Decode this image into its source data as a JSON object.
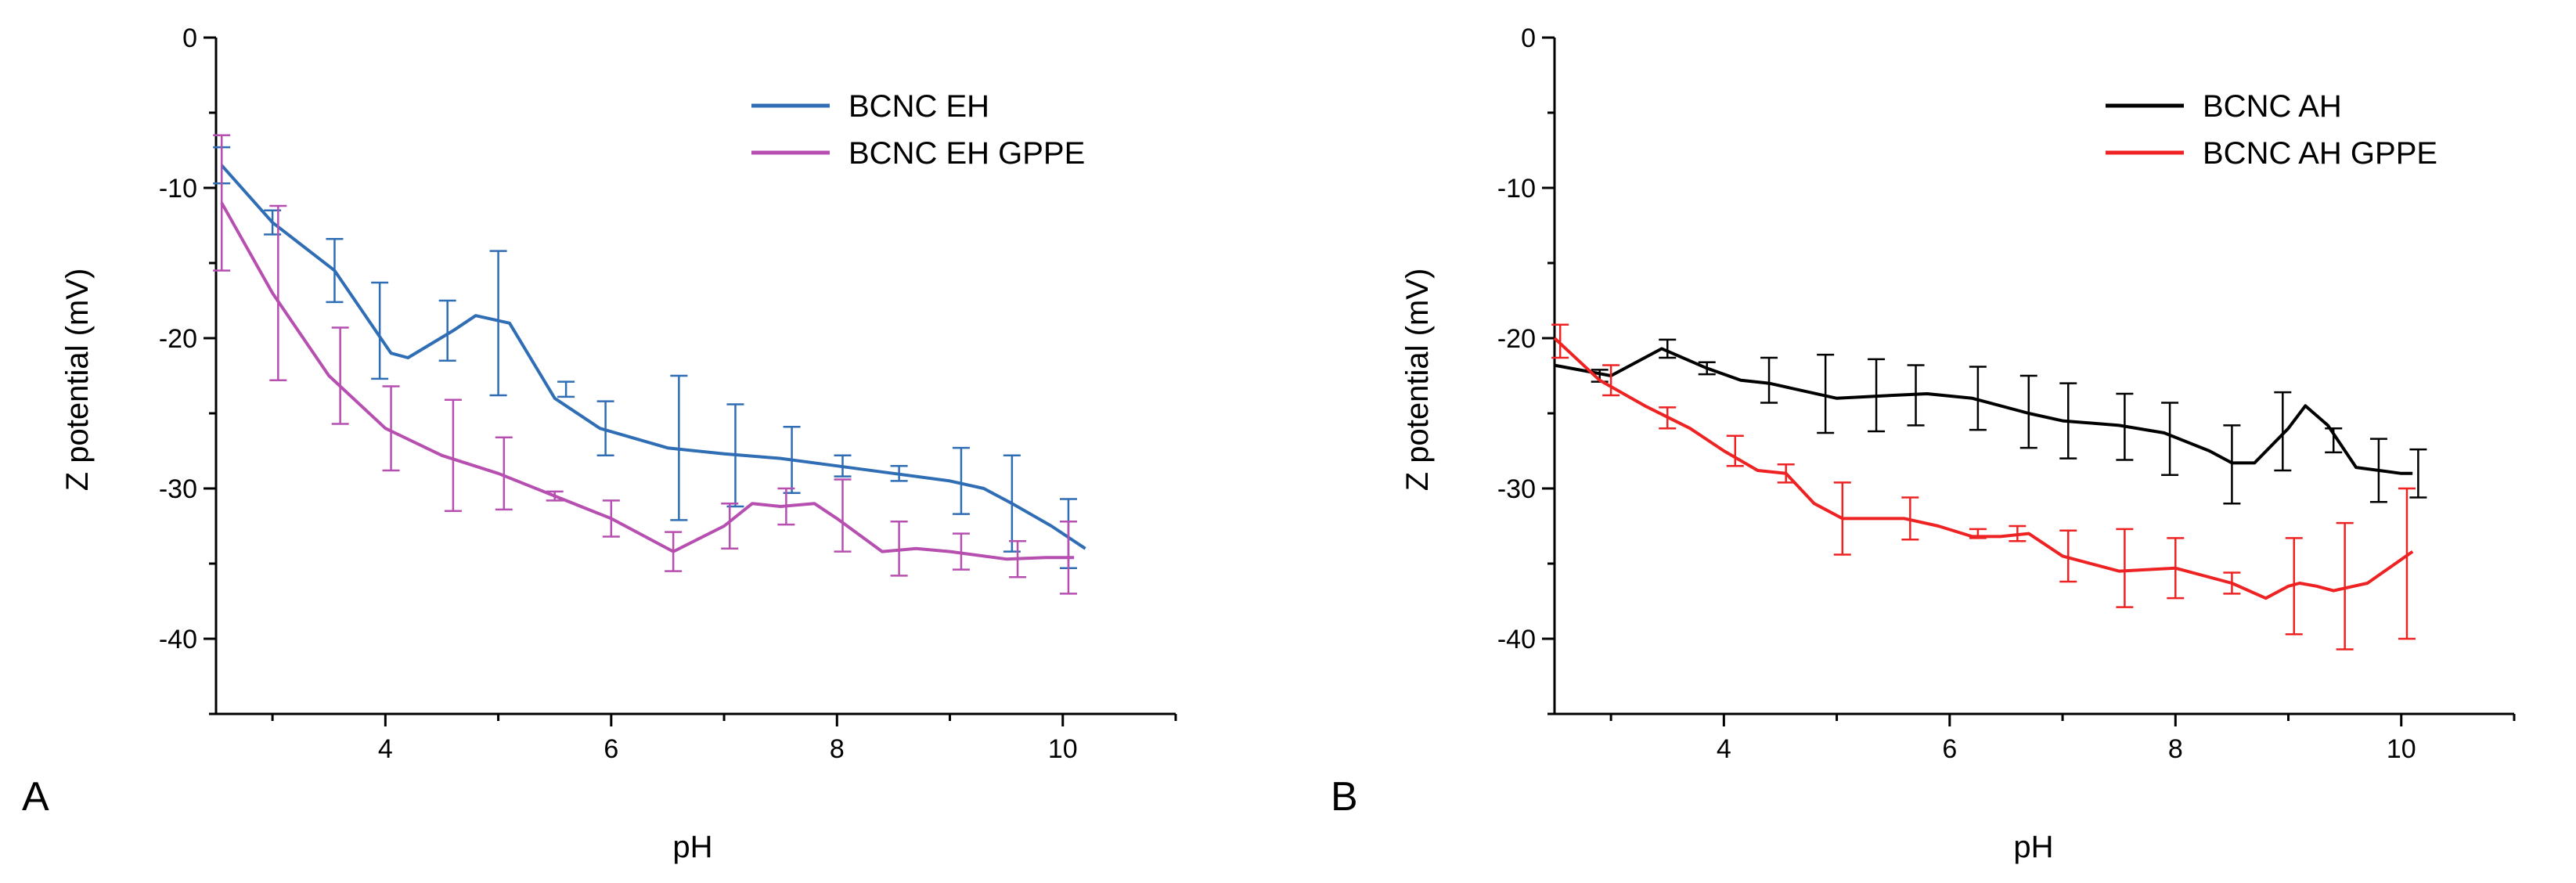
{
  "chart_data": [
    {
      "type": "line",
      "panel_label": "A",
      "xlabel": "pH",
      "ylabel": "Z potential (mV)",
      "xlim": [
        2.5,
        11.0
      ],
      "ylim": [
        -45,
        0
      ],
      "xticks": [
        4,
        6,
        8,
        10
      ],
      "yticks": [
        0,
        -10,
        -20,
        -30,
        -40
      ],
      "legend_position": "top-right",
      "series": [
        {
          "name": "BCNC EH",
          "color": "#2f6db5",
          "x": [
            2.55,
            3.0,
            3.55,
            4.05,
            4.2,
            4.6,
            4.8,
            5.1,
            5.5,
            5.9,
            6.5,
            7.0,
            7.5,
            8.0,
            8.5,
            9.0,
            9.3,
            9.55,
            9.9,
            10.2
          ],
          "y": [
            -8.5,
            -12.3,
            -15.5,
            -21.0,
            -21.3,
            -19.5,
            -18.5,
            -19.0,
            -24.0,
            -26.0,
            -27.3,
            -27.7,
            -28.0,
            -28.5,
            -29.0,
            -29.5,
            -30.0,
            -31.0,
            -32.5,
            -34.0
          ],
          "errors": [
            {
              "x": 2.55,
              "y": -8.5,
              "err": 1.2
            },
            {
              "x": 3.0,
              "y": -12.3,
              "err": 0.8
            },
            {
              "x": 3.55,
              "y": -15.5,
              "err": 2.1
            },
            {
              "x": 3.95,
              "y": -19.5,
              "err": 3.2
            },
            {
              "x": 4.55,
              "y": -19.5,
              "err": 2.0
            },
            {
              "x": 5.0,
              "y": -19.0,
              "err": 4.8
            },
            {
              "x": 5.6,
              "y": -23.4,
              "err": 0.5
            },
            {
              "x": 5.95,
              "y": -26.0,
              "err": 1.8
            },
            {
              "x": 6.6,
              "y": -27.3,
              "err": 4.8
            },
            {
              "x": 7.1,
              "y": -27.8,
              "err": 3.4
            },
            {
              "x": 7.6,
              "y": -28.1,
              "err": 2.2
            },
            {
              "x": 8.05,
              "y": -28.5,
              "err": 0.7
            },
            {
              "x": 8.55,
              "y": -29.0,
              "err": 0.5
            },
            {
              "x": 9.1,
              "y": -29.5,
              "err": 2.2
            },
            {
              "x": 9.55,
              "y": -31.0,
              "err": 3.2
            },
            {
              "x": 10.05,
              "y": -33.0,
              "err": 2.3
            }
          ]
        },
        {
          "name": "BCNC EH GPPE",
          "color": "#b64fb0",
          "x": [
            2.55,
            3.0,
            3.5,
            4.0,
            4.5,
            5.0,
            5.5,
            6.0,
            6.55,
            7.0,
            7.25,
            7.5,
            7.8,
            8.0,
            8.4,
            8.7,
            9.0,
            9.5,
            9.85,
            10.1
          ],
          "y": [
            -11.0,
            -17.0,
            -22.5,
            -26.0,
            -27.8,
            -29.0,
            -30.5,
            -32.0,
            -34.2,
            -32.5,
            -31.0,
            -31.2,
            -31.0,
            -32.0,
            -34.2,
            -34.0,
            -34.2,
            -34.7,
            -34.6,
            -34.6
          ],
          "errors": [
            {
              "x": 2.55,
              "y": -11.0,
              "err": 4.5
            },
            {
              "x": 3.05,
              "y": -17.0,
              "err": 5.8
            },
            {
              "x": 3.6,
              "y": -22.5,
              "err": 3.2
            },
            {
              "x": 4.05,
              "y": -26.0,
              "err": 2.8
            },
            {
              "x": 4.6,
              "y": -27.8,
              "err": 3.7
            },
            {
              "x": 5.05,
              "y": -29.0,
              "err": 2.4
            },
            {
              "x": 5.5,
              "y": -30.5,
              "err": 0.3
            },
            {
              "x": 6.0,
              "y": -32.0,
              "err": 1.2
            },
            {
              "x": 6.55,
              "y": -34.2,
              "err": 1.3
            },
            {
              "x": 7.05,
              "y": -32.5,
              "err": 1.5
            },
            {
              "x": 7.55,
              "y": -31.2,
              "err": 1.2
            },
            {
              "x": 8.05,
              "y": -31.8,
              "err": 2.4
            },
            {
              "x": 8.55,
              "y": -34.0,
              "err": 1.8
            },
            {
              "x": 9.1,
              "y": -34.2,
              "err": 1.2
            },
            {
              "x": 9.6,
              "y": -34.7,
              "err": 1.2
            },
            {
              "x": 10.05,
              "y": -34.6,
              "err": 2.4
            }
          ]
        }
      ]
    },
    {
      "type": "line",
      "panel_label": "B",
      "xlabel": "pH",
      "ylabel": "Z potential (mV)",
      "xlim": [
        2.5,
        11.0
      ],
      "ylim": [
        -45,
        0
      ],
      "xticks": [
        4,
        6,
        8,
        10
      ],
      "yticks": [
        0,
        -10,
        -20,
        -30,
        -40
      ],
      "legend_position": "top-right",
      "series": [
        {
          "name": "BCNC AH",
          "color": "#000000",
          "x": [
            2.5,
            3.0,
            3.45,
            3.85,
            4.15,
            4.4,
            5.0,
            5.5,
            5.8,
            6.2,
            6.7,
            7.0,
            7.5,
            7.9,
            8.3,
            8.5,
            8.7,
            9.0,
            9.15,
            9.35,
            9.6,
            10.0,
            10.1
          ],
          "y": [
            -21.8,
            -22.5,
            -20.7,
            -22.0,
            -22.8,
            -23.0,
            -24.0,
            -23.8,
            -23.7,
            -24.0,
            -25.0,
            -25.5,
            -25.8,
            -26.3,
            -27.5,
            -28.3,
            -28.3,
            -26.0,
            -24.5,
            -25.8,
            -28.6,
            -29.0,
            -29.0
          ],
          "errors": [
            {
              "x": 2.9,
              "y": -22.5,
              "err": 0.4
            },
            {
              "x": 3.5,
              "y": -20.7,
              "err": 0.6
            },
            {
              "x": 3.85,
              "y": -22.0,
              "err": 0.4
            },
            {
              "x": 4.4,
              "y": -22.8,
              "err": 1.5
            },
            {
              "x": 4.9,
              "y": -23.7,
              "err": 2.6
            },
            {
              "x": 5.35,
              "y": -23.8,
              "err": 2.4
            },
            {
              "x": 5.7,
              "y": -23.8,
              "err": 2.0
            },
            {
              "x": 6.25,
              "y": -24.0,
              "err": 2.1
            },
            {
              "x": 6.7,
              "y": -24.9,
              "err": 2.4
            },
            {
              "x": 7.05,
              "y": -25.5,
              "err": 2.5
            },
            {
              "x": 7.55,
              "y": -25.9,
              "err": 2.2
            },
            {
              "x": 7.95,
              "y": -26.7,
              "err": 2.4
            },
            {
              "x": 8.5,
              "y": -28.4,
              "err": 2.6
            },
            {
              "x": 8.95,
              "y": -26.2,
              "err": 2.6
            },
            {
              "x": 9.4,
              "y": -26.8,
              "err": 0.8
            },
            {
              "x": 9.8,
              "y": -28.8,
              "err": 2.1
            },
            {
              "x": 10.15,
              "y": -29.0,
              "err": 1.6
            }
          ]
        },
        {
          "name": "BCNC AH GPPE",
          "color": "#ee2222",
          "x": [
            2.5,
            2.9,
            3.3,
            3.7,
            4.0,
            4.3,
            4.55,
            4.8,
            5.05,
            5.6,
            5.9,
            6.2,
            6.45,
            6.7,
            7.0,
            7.5,
            8.0,
            8.5,
            8.8,
            9.0,
            9.1,
            9.25,
            9.4,
            9.7,
            10.1
          ],
          "y": [
            -20.0,
            -22.8,
            -24.5,
            -26.0,
            -27.5,
            -28.8,
            -29.0,
            -31.0,
            -32.0,
            -32.0,
            -32.5,
            -33.2,
            -33.2,
            -33.0,
            -34.5,
            -35.5,
            -35.3,
            -36.3,
            -37.3,
            -36.5,
            -36.3,
            -36.5,
            -36.8,
            -36.3,
            -34.2
          ],
          "errors": [
            {
              "x": 2.55,
              "y": -20.2,
              "err": 1.1
            },
            {
              "x": 3.0,
              "y": -22.8,
              "err": 1.0
            },
            {
              "x": 3.5,
              "y": -25.3,
              "err": 0.7
            },
            {
              "x": 4.1,
              "y": -27.5,
              "err": 1.0
            },
            {
              "x": 4.55,
              "y": -29.0,
              "err": 0.6
            },
            {
              "x": 5.05,
              "y": -32.0,
              "err": 2.4
            },
            {
              "x": 5.65,
              "y": -32.0,
              "err": 1.4
            },
            {
              "x": 6.25,
              "y": -33.0,
              "err": 0.3
            },
            {
              "x": 6.6,
              "y": -33.0,
              "err": 0.5
            },
            {
              "x": 7.05,
              "y": -34.5,
              "err": 1.7
            },
            {
              "x": 7.55,
              "y": -35.3,
              "err": 2.6
            },
            {
              "x": 8.0,
              "y": -35.3,
              "err": 2.0
            },
            {
              "x": 8.5,
              "y": -36.3,
              "err": 0.7
            },
            {
              "x": 9.05,
              "y": -36.5,
              "err": 3.2
            },
            {
              "x": 9.5,
              "y": -36.5,
              "err": 4.2
            },
            {
              "x": 10.05,
              "y": -35.0,
              "err": 5.0
            }
          ]
        }
      ]
    }
  ]
}
